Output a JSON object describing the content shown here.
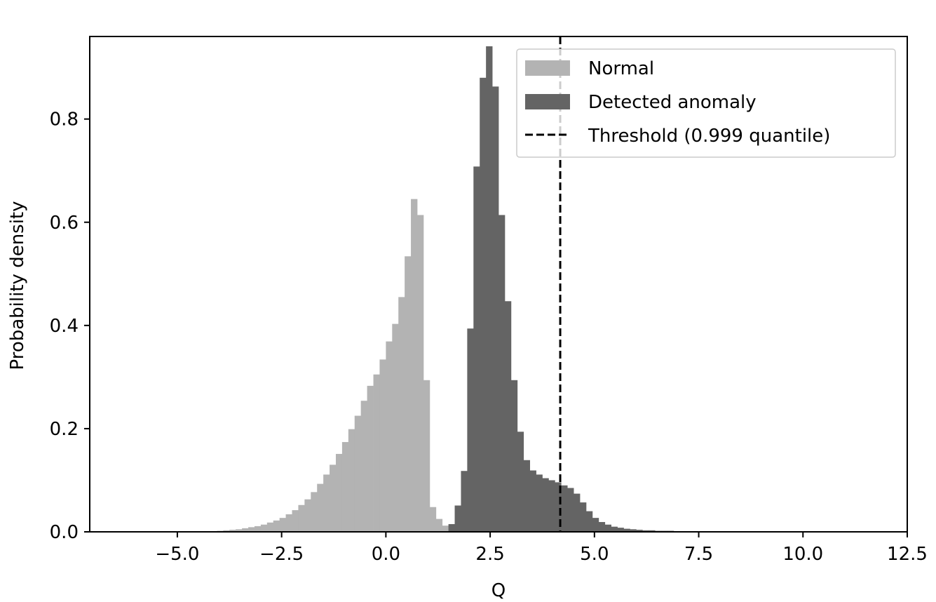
{
  "chart_data": {
    "type": "bar",
    "title": "",
    "xlabel": "Q",
    "ylabel": "Probability density",
    "xlim": [
      -7.1,
      12.5
    ],
    "ylim": [
      0.0,
      0.96
    ],
    "xticks": [
      -5.0,
      -2.5,
      0.0,
      2.5,
      5.0,
      7.5,
      10.0,
      12.5
    ],
    "xtick_labels": [
      "−5.0",
      "−2.5",
      "0.0",
      "2.5",
      "5.0",
      "7.5",
      "10.0",
      "12.5"
    ],
    "yticks": [
      0.0,
      0.2,
      0.4,
      0.6,
      0.8
    ],
    "ytick_labels": [
      "0.0",
      "0.2",
      "0.4",
      "0.6",
      "0.8"
    ],
    "grid": false,
    "legend": "top-right",
    "bin_width": 0.15,
    "series": [
      {
        "name": "Normal",
        "color": "#b3b3b3",
        "x_start": [
          -4.05,
          -3.9,
          -3.75,
          -3.6,
          -3.45,
          -3.3,
          -3.15,
          -3.0,
          -2.85,
          -2.7,
          -2.55,
          -2.4,
          -2.25,
          -2.1,
          -1.95,
          -1.8,
          -1.65,
          -1.5,
          -1.35,
          -1.2,
          -1.05,
          -0.9,
          -0.75,
          -0.6,
          -0.45,
          -0.3,
          -0.15,
          0.0,
          0.15,
          0.3,
          0.45,
          0.6,
          0.75,
          0.9,
          1.05,
          1.2,
          1.35,
          1.5
        ],
        "values": [
          0.002,
          0.003,
          0.004,
          0.005,
          0.007,
          0.009,
          0.011,
          0.014,
          0.018,
          0.022,
          0.027,
          0.034,
          0.042,
          0.052,
          0.063,
          0.077,
          0.093,
          0.111,
          0.13,
          0.151,
          0.174,
          0.199,
          0.225,
          0.254,
          0.283,
          0.305,
          0.334,
          0.369,
          0.403,
          0.455,
          0.534,
          0.645,
          0.614,
          0.294,
          0.048,
          0.025,
          0.012,
          0.004
        ]
      },
      {
        "name": "Detected anomaly",
        "color": "#646464",
        "x_start": [
          1.5,
          1.65,
          1.8,
          1.95,
          2.1,
          2.25,
          2.4,
          2.55,
          2.7,
          2.85,
          3.0,
          3.15,
          3.3,
          3.45,
          3.6,
          3.75,
          3.9,
          4.05,
          4.2,
          4.35,
          4.5,
          4.65,
          4.8,
          4.95,
          5.1,
          5.25,
          5.4,
          5.55,
          5.7,
          5.85,
          6.0,
          6.15,
          6.3,
          6.45,
          6.6,
          6.75,
          6.9,
          7.05
        ],
        "values": [
          0.015,
          0.051,
          0.118,
          0.394,
          0.708,
          0.88,
          0.941,
          0.863,
          0.614,
          0.447,
          0.294,
          0.194,
          0.139,
          0.119,
          0.111,
          0.104,
          0.1,
          0.096,
          0.09,
          0.085,
          0.074,
          0.057,
          0.04,
          0.027,
          0.019,
          0.014,
          0.01,
          0.008,
          0.006,
          0.005,
          0.004,
          0.003,
          0.003,
          0.002,
          0.002,
          0.002,
          0.001,
          0.001
        ]
      }
    ],
    "threshold": {
      "name": "Threshold (0.999 quantile)",
      "x": 4.18,
      "color": "#000000",
      "style": "dashed"
    }
  }
}
